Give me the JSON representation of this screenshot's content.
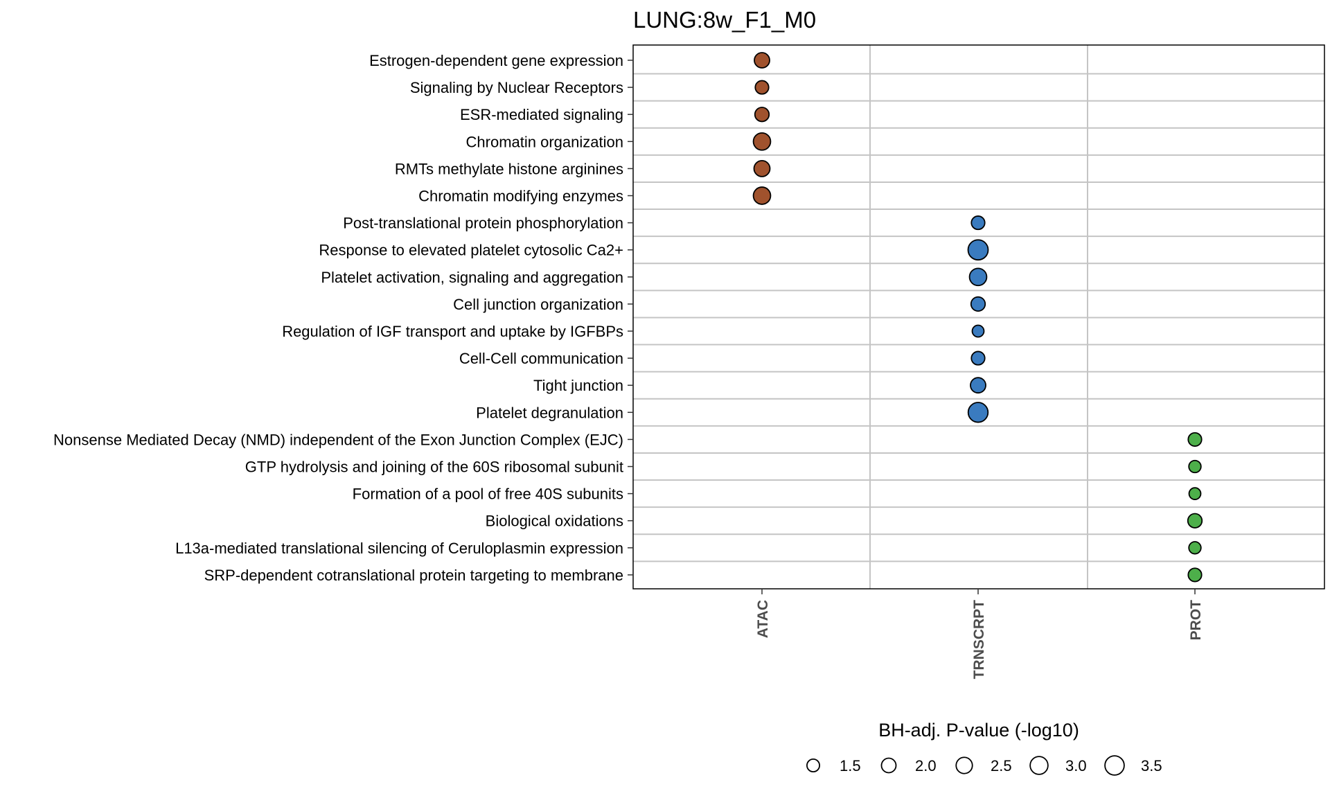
{
  "chart_data": {
    "type": "scatter",
    "title": "LUNG:8w_F1_M0",
    "x_categories": [
      "ATAC",
      "TRNSCRPT",
      "PROT"
    ],
    "y_categories": [
      "Estrogen-dependent gene expression",
      "Signaling by Nuclear Receptors",
      "ESR-mediated signaling",
      "Chromatin organization",
      "RMTs methylate histone arginines",
      "Chromatin modifying enzymes",
      "Post-translational protein phosphorylation",
      "Response to elevated platelet cytosolic Ca2+",
      "Platelet activation, signaling and aggregation",
      "Cell junction organization",
      "Regulation of IGF transport and uptake by IGFBPs",
      "Cell-Cell communication",
      "Tight junction",
      "Platelet degranulation ",
      "Nonsense Mediated Decay (NMD) independent of the Exon Junction Complex (EJC)",
      "GTP hydrolysis and joining of the 60S ribosomal subunit",
      "Formation of a pool of free 40S subunits",
      "Biological oxidations",
      "L13a-mediated translational silencing of Ceruloplasmin expression",
      "SRP-dependent cotranslational protein targeting to membrane"
    ],
    "points": [
      {
        "x": "ATAC",
        "y": "Estrogen-dependent gene expression",
        "neglog10_padj": 2.2,
        "color": "#A0522D"
      },
      {
        "x": "ATAC",
        "y": "Signaling by Nuclear Receptors",
        "neglog10_padj": 1.7,
        "color": "#A0522D"
      },
      {
        "x": "ATAC",
        "y": "ESR-mediated signaling",
        "neglog10_padj": 1.9,
        "color": "#A0522D"
      },
      {
        "x": "ATAC",
        "y": "Chromatin organization",
        "neglog10_padj": 2.8,
        "color": "#A0522D"
      },
      {
        "x": "ATAC",
        "y": "RMTs methylate histone arginines",
        "neglog10_padj": 2.4,
        "color": "#A0522D"
      },
      {
        "x": "ATAC",
        "y": "Chromatin modifying enzymes",
        "neglog10_padj": 2.8,
        "color": "#A0522D"
      },
      {
        "x": "TRNSCRPT",
        "y": "Post-translational protein phosphorylation",
        "neglog10_padj": 1.7,
        "color": "#3A7BBF"
      },
      {
        "x": "TRNSCRPT",
        "y": "Response to elevated platelet cytosolic Ca2+",
        "neglog10_padj": 3.8,
        "color": "#3A7BBF"
      },
      {
        "x": "TRNSCRPT",
        "y": "Platelet activation, signaling and aggregation",
        "neglog10_padj": 2.8,
        "color": "#3A7BBF"
      },
      {
        "x": "TRNSCRPT",
        "y": "Cell junction organization",
        "neglog10_padj": 1.9,
        "color": "#3A7BBF"
      },
      {
        "x": "TRNSCRPT",
        "y": "Regulation of IGF transport and uptake by IGFBPs",
        "neglog10_padj": 1.3,
        "color": "#3A7BBF"
      },
      {
        "x": "TRNSCRPT",
        "y": "Cell-Cell communication",
        "neglog10_padj": 1.7,
        "color": "#3A7BBF"
      },
      {
        "x": "TRNSCRPT",
        "y": "Tight junction",
        "neglog10_padj": 2.2,
        "color": "#3A7BBF"
      },
      {
        "x": "TRNSCRPT",
        "y": "Platelet degranulation ",
        "neglog10_padj": 3.7,
        "color": "#3A7BBF"
      },
      {
        "x": "PROT",
        "y": "Nonsense Mediated Decay (NMD) independent of the Exon Junction Complex (EJC)",
        "neglog10_padj": 1.7,
        "color": "#4DAF4A"
      },
      {
        "x": "PROT",
        "y": "GTP hydrolysis and joining of the 60S ribosomal subunit",
        "neglog10_padj": 1.4,
        "color": "#4DAF4A"
      },
      {
        "x": "PROT",
        "y": "Formation of a pool of free 40S subunits",
        "neglog10_padj": 1.3,
        "color": "#4DAF4A"
      },
      {
        "x": "PROT",
        "y": "Biological oxidations",
        "neglog10_padj": 1.9,
        "color": "#4DAF4A"
      },
      {
        "x": "PROT",
        "y": "L13a-mediated translational silencing of Ceruloplasmin expression",
        "neglog10_padj": 1.4,
        "color": "#4DAF4A"
      },
      {
        "x": "PROT",
        "y": "SRP-dependent cotranslational protein targeting to membrane",
        "neglog10_padj": 1.7,
        "color": "#4DAF4A"
      }
    ],
    "legend": {
      "title": "BH-adj. P-value (-log10)",
      "placement": "bottom",
      "breaks": [
        1.5,
        2.0,
        2.5,
        3.0,
        3.5
      ],
      "labels": [
        "1.5",
        "2.0",
        "2.5",
        "3.0",
        "3.5"
      ]
    },
    "grid": true,
    "xlabel": "",
    "ylabel": ""
  }
}
